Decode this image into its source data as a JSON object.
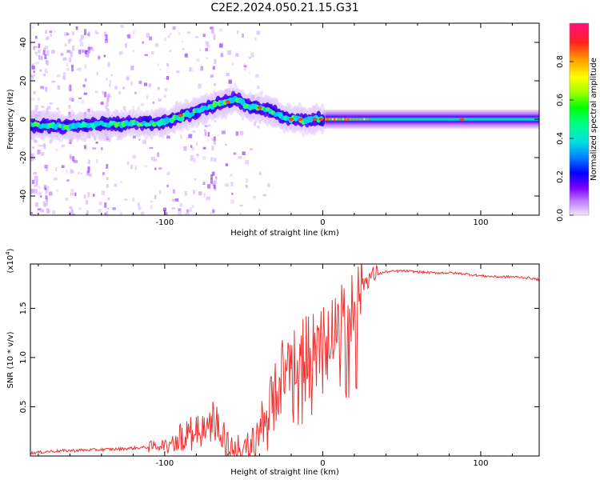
{
  "title": "C2E2.2024.050.21.15.G31",
  "chart_data": [
    {
      "type": "heatmap",
      "title": "C2E2.2024.050.21.15.G31",
      "xlabel": "Height of straight line (km)",
      "ylabel": "Frequency (Hz)",
      "xlim": [
        -185,
        137
      ],
      "ylim": [
        -50,
        50
      ],
      "xticks": [
        -100,
        0,
        100
      ],
      "xtick_labels": [
        "-100",
        "0",
        "100"
      ],
      "yticks": [
        -40,
        -20,
        0,
        20,
        40
      ],
      "ytick_labels": [
        "-40",
        "-20",
        "0",
        "20",
        "40"
      ],
      "ridge_x": [
        -185,
        -170,
        -160,
        -150,
        -140,
        -130,
        -120,
        -110,
        -100,
        -90,
        -80,
        -70,
        -60,
        -55,
        -50,
        -45,
        -40,
        -35,
        -30,
        -25,
        -20,
        -15,
        -10,
        -5,
        0,
        20,
        50,
        100,
        137
      ],
      "ridge_y": [
        -3,
        -3.5,
        -4,
        -3,
        -2.5,
        -2.5,
        -2,
        -2.5,
        -1.5,
        1,
        4,
        7,
        9,
        11,
        8,
        6,
        6,
        5,
        3,
        1,
        0,
        0,
        -1,
        0,
        0,
        0,
        0,
        0,
        0
      ],
      "colorbar": {
        "label": "Normalized spectral amplitude",
        "range": [
          0,
          1
        ],
        "ticks": [
          0.0,
          0.2,
          0.4,
          0.6,
          0.8
        ],
        "tick_labels": [
          "0.0",
          "0.2",
          "0.4",
          "0.6",
          "0.8"
        ]
      }
    },
    {
      "type": "line",
      "xlabel": "Height of straight line (km)",
      "ylabel": "SNR (10 * v/v)",
      "multiplier": "(x10",
      "multiplier_exp": "4",
      "multiplier_close": ")",
      "xlim": [
        -185,
        137
      ],
      "ylim": [
        0,
        1.95
      ],
      "xticks": [
        -100,
        0,
        100
      ],
      "xtick_labels": [
        "-100",
        "0",
        "100"
      ],
      "yticks": [
        0.5,
        1.0,
        1.5
      ],
      "ytick_labels": [
        "0.5",
        "1.0",
        "1.5"
      ],
      "series": [
        {
          "name": "SNR",
          "color": "#ee3333",
          "x": [
            -185,
            -170,
            -150,
            -130,
            -110,
            -100,
            -95,
            -90,
            -85,
            -80,
            -75,
            -70,
            -65,
            -60,
            -55,
            -50,
            -45,
            -40,
            -35,
            -30,
            -25,
            -20,
            -15,
            -10,
            -5,
            0,
            5,
            10,
            15,
            20,
            25,
            30,
            35,
            40,
            50,
            60,
            70,
            80,
            90,
            95,
            100,
            110,
            120,
            130,
            137
          ],
          "y": [
            0.03,
            0.05,
            0.06,
            0.07,
            0.09,
            0.12,
            0.15,
            0.2,
            0.25,
            0.3,
            0.35,
            0.5,
            0.3,
            0.07,
            0.05,
            0.05,
            0.08,
            0.3,
            0.4,
            0.6,
            0.9,
            1.0,
            1.05,
            1.1,
            1.15,
            1.2,
            1.3,
            1.4,
            1.45,
            1.55,
            1.75,
            1.82,
            1.85,
            1.87,
            1.88,
            1.87,
            1.86,
            1.86,
            1.85,
            1.84,
            1.83,
            1.82,
            1.82,
            1.81,
            1.79
          ]
        }
      ]
    }
  ]
}
